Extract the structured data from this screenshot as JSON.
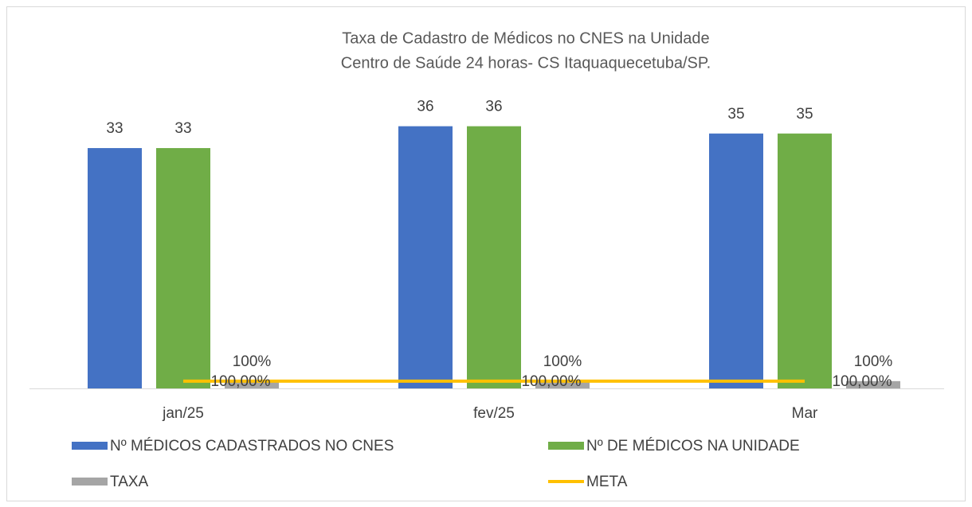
{
  "chart_data": {
    "type": "bar",
    "title": [
      "Taxa de Cadastro de Médicos no CNES na Unidade",
      "Centro de Saúde 24 horas- CS Itaquaquecetuba/SP."
    ],
    "categories": [
      "jan/25",
      "fev/25",
      "Mar"
    ],
    "ylim": [
      0,
      40
    ],
    "legend": "bottom",
    "series": [
      {
        "name": "Nº MÉDICOS CADASTRADOS NO CNES",
        "color": "#4472c4",
        "values": [
          33,
          36,
          35
        ]
      },
      {
        "name": "Nº DE MÉDICOS NA UNIDADE",
        "color": "#70ad47",
        "values": [
          33,
          36,
          35
        ]
      },
      {
        "name": "TAXA",
        "color": "#a5a5a5",
        "values": [
          1,
          1,
          1
        ],
        "value_labels": [
          "100%",
          "100%",
          "100%"
        ]
      },
      {
        "name": "META",
        "type": "line",
        "color": "#ffc000",
        "values": [
          1,
          1,
          1
        ],
        "value_labels": [
          "100,00%",
          "100,00%",
          "100,00%"
        ]
      }
    ]
  }
}
